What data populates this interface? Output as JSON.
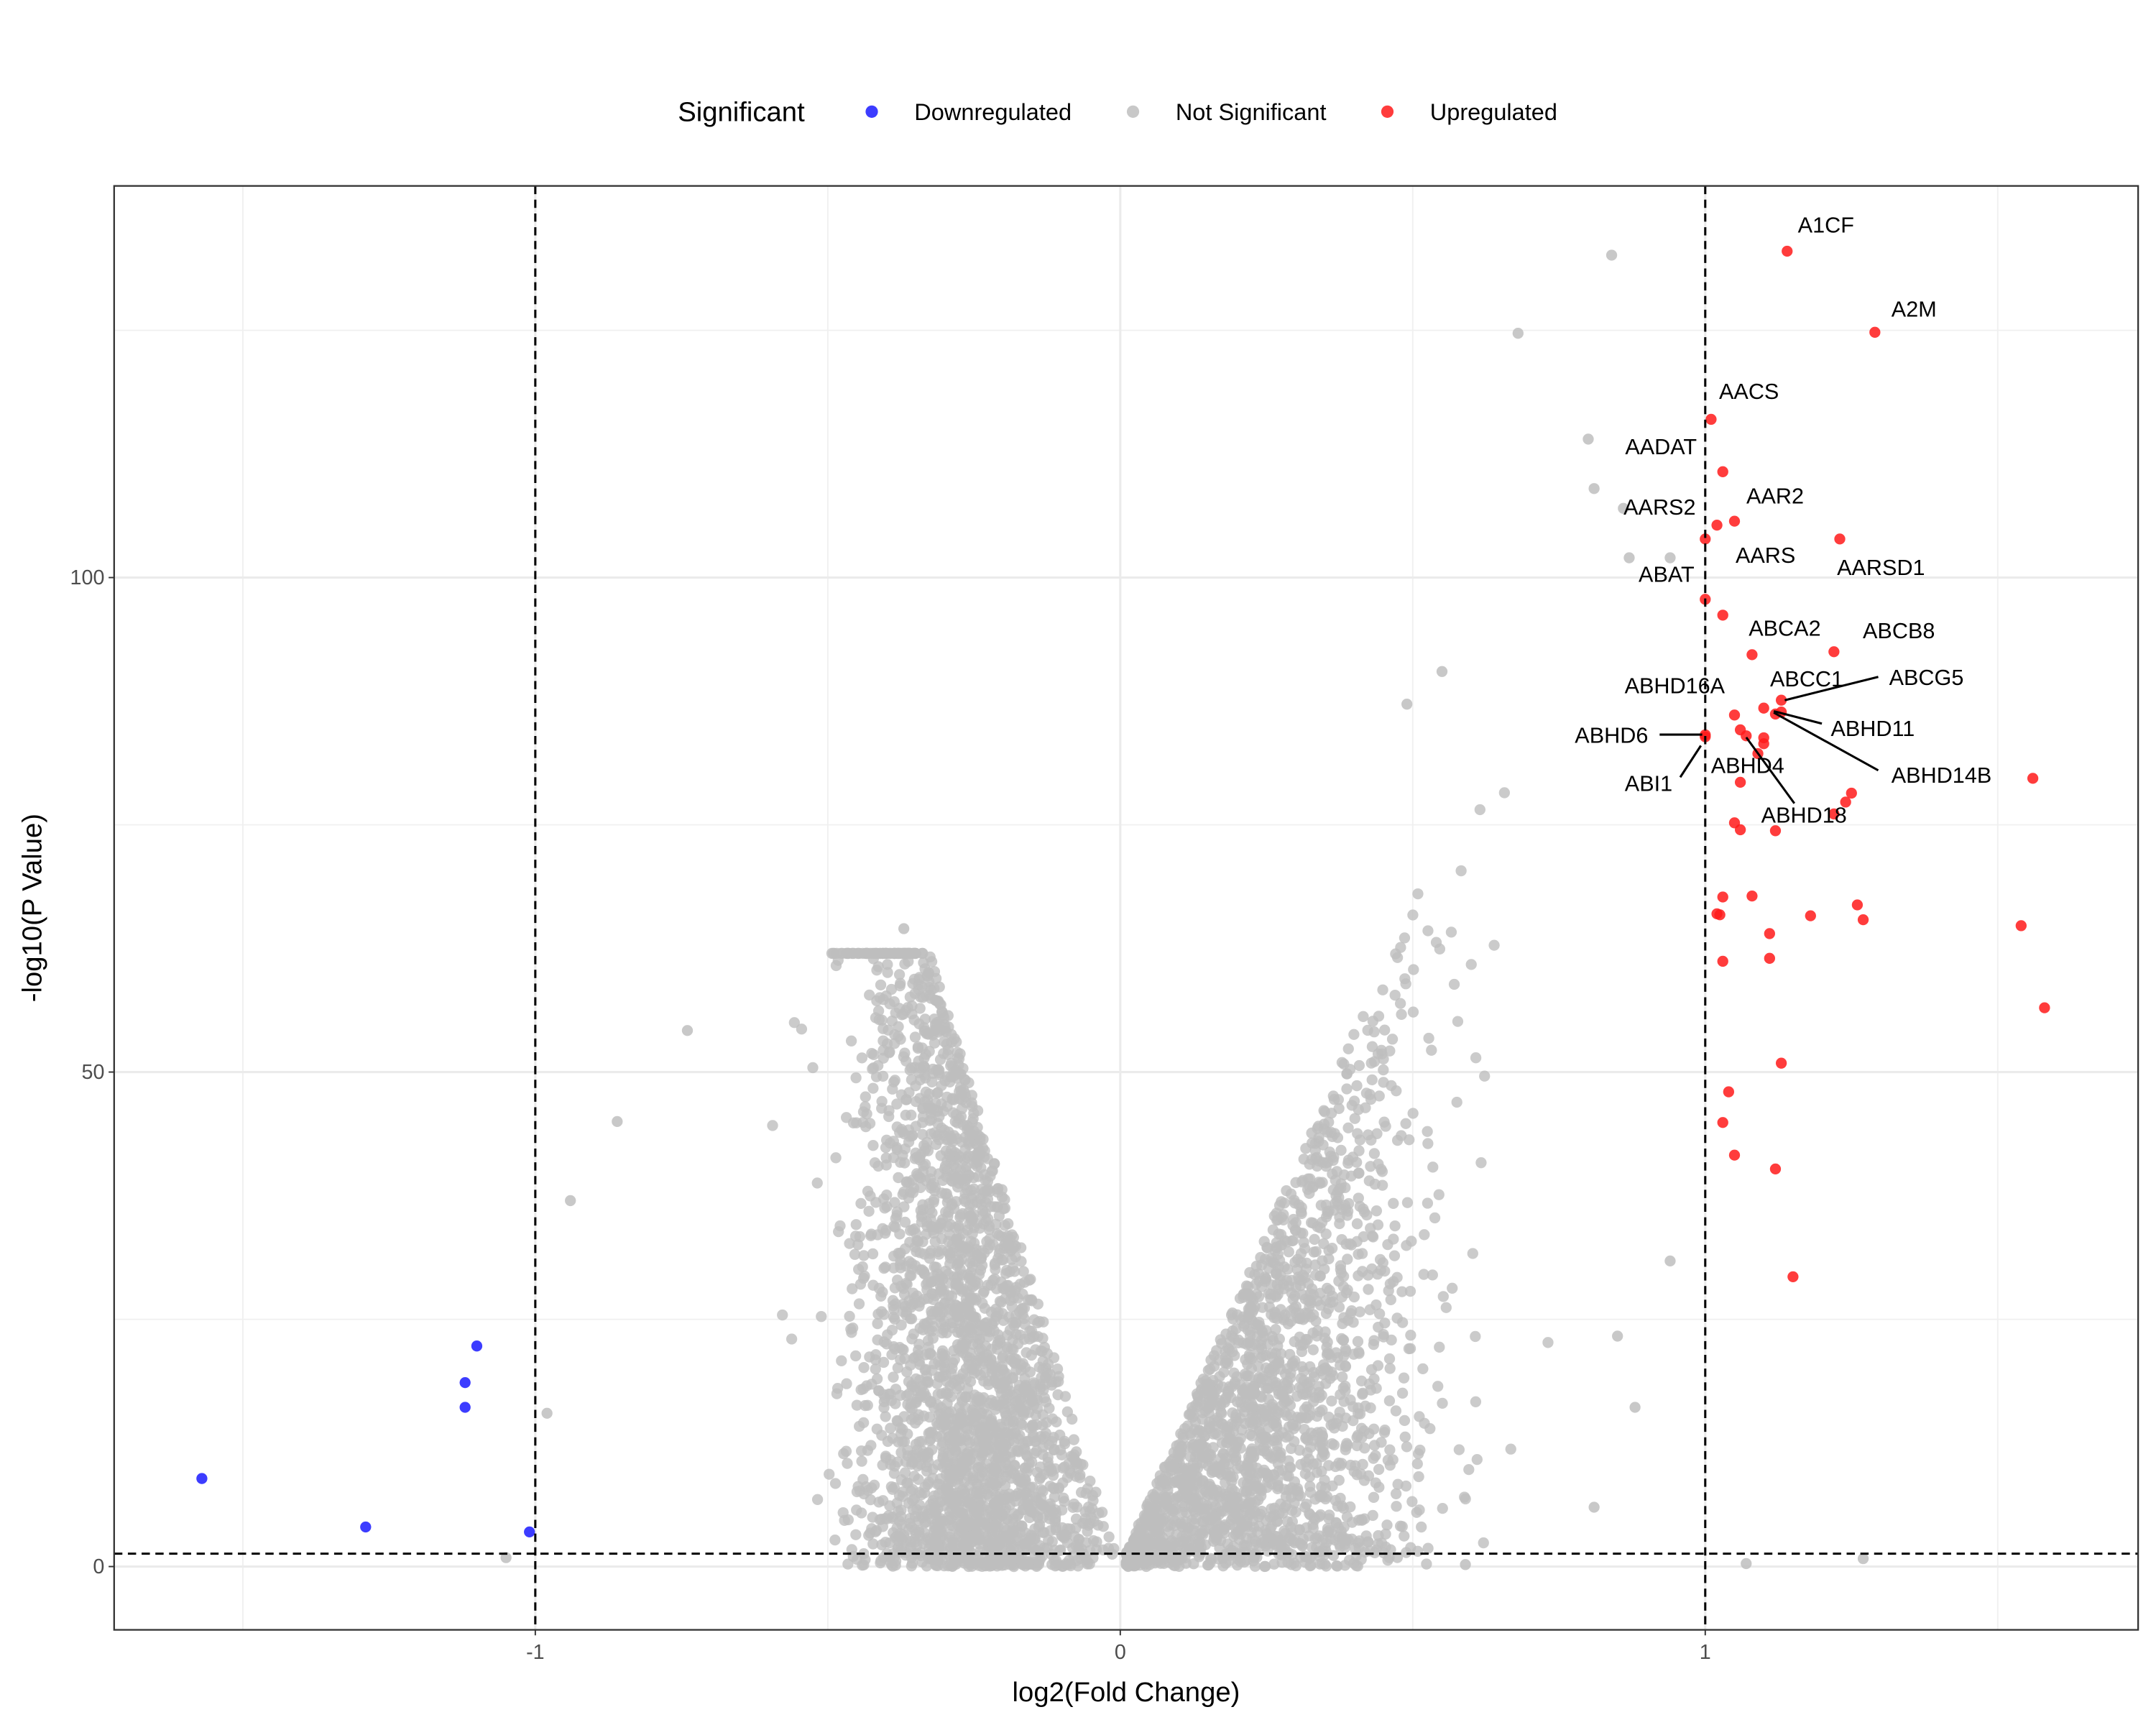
{
  "chart_data": {
    "type": "scatter",
    "title": "",
    "xlabel": "log2(Fold Change)",
    "ylabel": "-log10(P Value)",
    "xlim": [
      -1.72,
      1.74
    ],
    "ylim": [
      -6.4,
      139.6
    ],
    "x_ticks": [
      -1,
      0,
      1
    ],
    "y_ticks": [
      0,
      50,
      100
    ],
    "grid": true,
    "thresholds": {
      "fold_change": [
        -1,
        1
      ],
      "p_value_line": 1.3
    },
    "legend": {
      "title": "Significant",
      "placement": "top",
      "entries": [
        {
          "label": "Downregulated",
          "color": "#1a1aff"
        },
        {
          "label": "Not Significant",
          "color": "#bebebe"
        },
        {
          "label": "Upregulated",
          "color": "#ff1a1a"
        }
      ]
    },
    "series": [
      {
        "name": "Downregulated",
        "color": "#1a1aff",
        "points": [
          {
            "x": -1.1,
            "y": 22.3
          },
          {
            "x": -1.12,
            "y": 18.6
          },
          {
            "x": -1.12,
            "y": 16.1
          },
          {
            "x": -1.57,
            "y": 8.9
          },
          {
            "x": -1.29,
            "y": 4.0
          },
          {
            "x": -1.01,
            "y": 3.5
          }
        ]
      },
      {
        "name": "Upregulated",
        "color": "#ff1a1a",
        "points": [
          {
            "x": 1.14,
            "y": 133.0,
            "label": "A1CF"
          },
          {
            "x": 1.29,
            "y": 124.8,
            "label": "A2M"
          },
          {
            "x": 1.01,
            "y": 116.0,
            "label": "AACS"
          },
          {
            "x": 1.03,
            "y": 110.7,
            "label": "AADAT"
          },
          {
            "x": 1.05,
            "y": 105.7,
            "label": "AAR2"
          },
          {
            "x": 1.02,
            "y": 105.3,
            "label": "AARS2"
          },
          {
            "x": 1.0,
            "y": 103.9,
            "label": "AARS"
          },
          {
            "x": 1.23,
            "y": 103.9,
            "label": "AARSD1"
          },
          {
            "x": 1.0,
            "y": 97.8,
            "label": "ABAT"
          },
          {
            "x": 1.03,
            "y": 96.2
          },
          {
            "x": 1.08,
            "y": 92.2,
            "label": "ABCA2"
          },
          {
            "x": 1.22,
            "y": 92.5,
            "label": "ABCB8"
          },
          {
            "x": 1.13,
            "y": 87.6,
            "label": "ABCG5"
          },
          {
            "x": 1.1,
            "y": 86.8,
            "label": "ABCC1"
          },
          {
            "x": 1.13,
            "y": 86.4,
            "label": "ABHD11"
          },
          {
            "x": 1.12,
            "y": 86.2,
            "label": "ABHD14B"
          },
          {
            "x": 1.05,
            "y": 86.1,
            "label": "ABHD16A"
          },
          {
            "x": 1.0,
            "y": 84.1,
            "label": "ABHD6"
          },
          {
            "x": 1.0,
            "y": 83.9,
            "label": "ABI1"
          },
          {
            "x": 1.06,
            "y": 84.6,
            "label": "ABHD4"
          },
          {
            "x": 1.07,
            "y": 84.0,
            "label": "ABHD18"
          },
          {
            "x": 1.1,
            "y": 83.8
          },
          {
            "x": 1.1,
            "y": 83.2
          },
          {
            "x": 1.09,
            "y": 82.2
          },
          {
            "x": 1.06,
            "y": 79.3
          },
          {
            "x": 1.56,
            "y": 79.7
          },
          {
            "x": 1.25,
            "y": 78.2
          },
          {
            "x": 1.24,
            "y": 77.3
          },
          {
            "x": 1.22,
            "y": 76.1
          },
          {
            "x": 1.05,
            "y": 75.2
          },
          {
            "x": 1.06,
            "y": 74.5
          },
          {
            "x": 1.12,
            "y": 74.4
          },
          {
            "x": 1.03,
            "y": 67.7
          },
          {
            "x": 1.08,
            "y": 67.8
          },
          {
            "x": 1.02,
            "y": 66.0
          },
          {
            "x": 1.025,
            "y": 65.9
          },
          {
            "x": 1.26,
            "y": 66.9
          },
          {
            "x": 1.27,
            "y": 65.4
          },
          {
            "x": 1.18,
            "y": 65.8
          },
          {
            "x": 1.54,
            "y": 64.8
          },
          {
            "x": 1.11,
            "y": 64.0
          },
          {
            "x": 1.11,
            "y": 61.5
          },
          {
            "x": 1.03,
            "y": 61.2
          },
          {
            "x": 1.58,
            "y": 56.5
          },
          {
            "x": 1.13,
            "y": 50.9
          },
          {
            "x": 1.04,
            "y": 48.0
          },
          {
            "x": 1.03,
            "y": 44.9
          },
          {
            "x": 1.05,
            "y": 41.6
          },
          {
            "x": 1.12,
            "y": 40.2
          },
          {
            "x": 1.15,
            "y": 29.3
          }
        ]
      },
      {
        "name": "Not Significant",
        "color": "#bebebe",
        "points": [
          {
            "x": 0.84,
            "y": 132.6
          },
          {
            "x": 0.68,
            "y": 124.7
          },
          {
            "x": 0.8,
            "y": 114.0
          },
          {
            "x": 0.81,
            "y": 109.0
          },
          {
            "x": 0.86,
            "y": 107.0
          },
          {
            "x": 0.87,
            "y": 102.0
          },
          {
            "x": 0.94,
            "y": 102.0
          },
          {
            "x": 0.55,
            "y": 90.5
          },
          {
            "x": 0.49,
            "y": 87.2
          },
          {
            "x": -0.37,
            "y": 64.5
          },
          {
            "x": -0.74,
            "y": 54.2
          },
          {
            "x": -0.86,
            "y": 45.0
          },
          {
            "x": -0.94,
            "y": 37.0
          },
          {
            "x": -0.98,
            "y": 15.5
          },
          {
            "x": -1.05,
            "y": 0.9
          },
          {
            "x": 0.81,
            "y": 6.0
          },
          {
            "x": 0.59,
            "y": 0.2
          },
          {
            "x": 1.07,
            "y": 0.3
          },
          {
            "x": 1.27,
            "y": 0.8
          },
          {
            "x": 0.94,
            "y": 30.9
          },
          {
            "x": 0.85,
            "y": 23.3
          },
          {
            "x": 0.88,
            "y": 16.1
          }
        ]
      }
    ]
  }
}
